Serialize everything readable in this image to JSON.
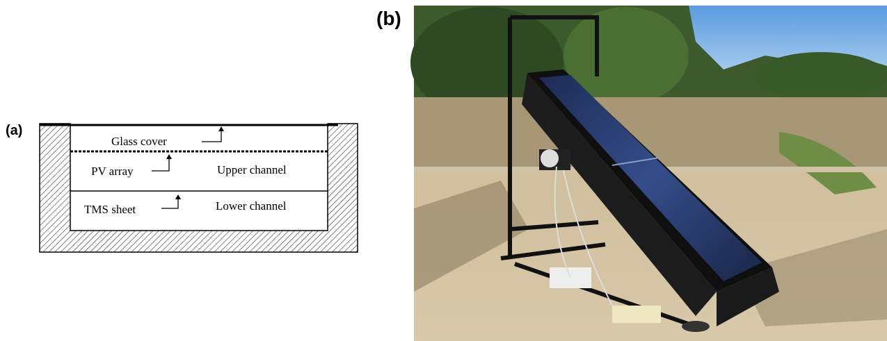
{
  "panel_a": {
    "label": "(a)",
    "glass_cover": "Glass cover",
    "pv_array": "PV array",
    "upper_channel": "Upper channel",
    "tms_sheet": "TMS sheet",
    "lower_channel": "Lower channel"
  },
  "panel_b": {
    "label": "(b)"
  }
}
